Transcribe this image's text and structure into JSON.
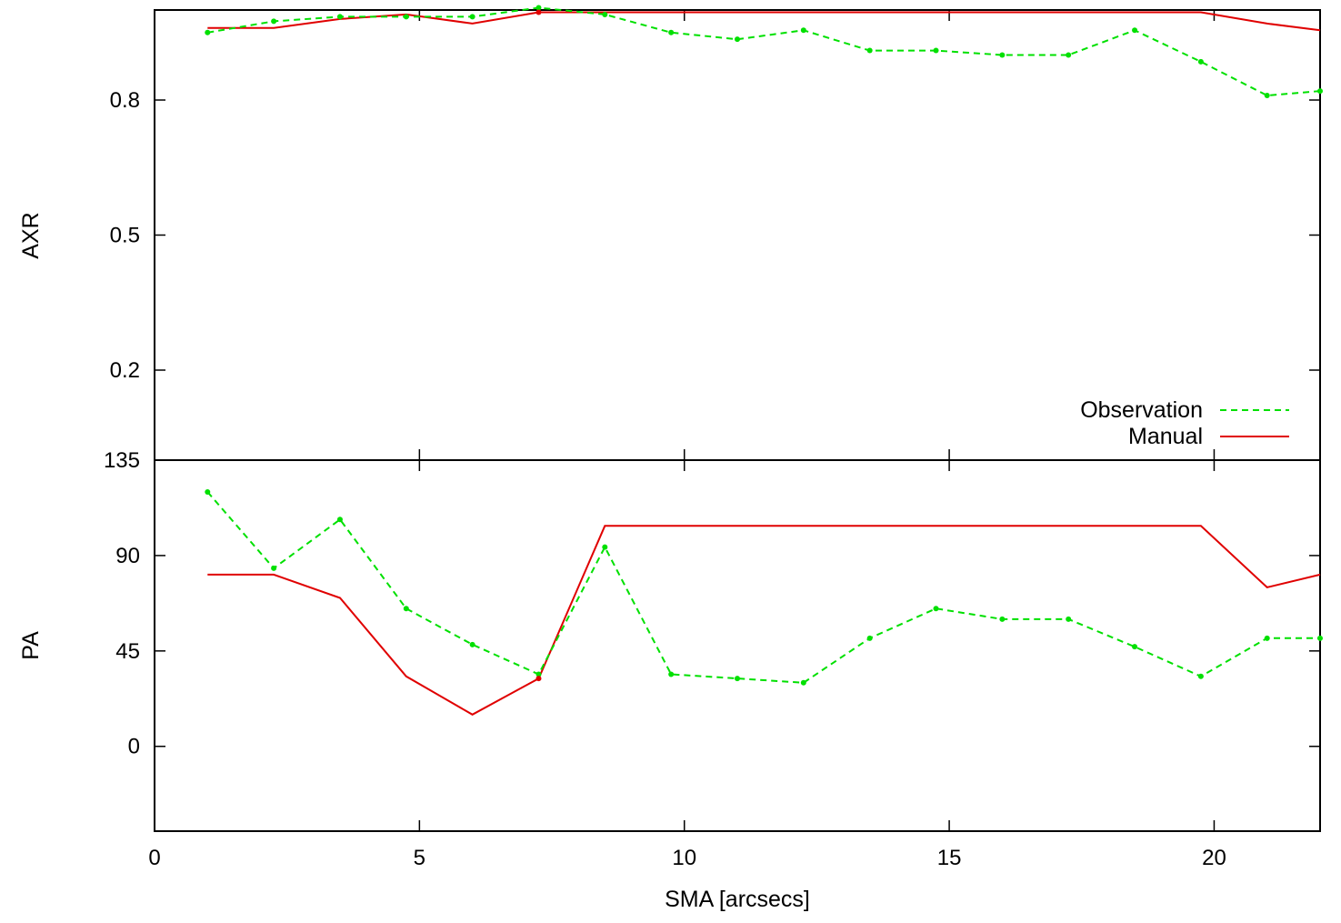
{
  "chart_data": [
    {
      "type": "line",
      "panel": "top",
      "ylabel": "AXR",
      "xlabel": "",
      "xlim": [
        0,
        22
      ],
      "ylim": [
        0.0,
        1.0
      ],
      "yticks": [
        "0.2",
        "0.5",
        "0.8"
      ],
      "grid": false,
      "legend_position": "bottom-right",
      "series": [
        {
          "name": "Observation",
          "color": "#00e000",
          "style": "dashed",
          "markers": true,
          "x": [
            1.0,
            2.25,
            3.5,
            4.75,
            6.0,
            7.25,
            8.5,
            9.75,
            11.0,
            12.25,
            13.5,
            14.75,
            16.0,
            17.25,
            18.5,
            19.75,
            21.0,
            22.0
          ],
          "y": [
            0.95,
            0.975,
            0.985,
            0.985,
            0.985,
            1.005,
            0.99,
            0.95,
            0.935,
            0.955,
            0.91,
            0.91,
            0.9,
            0.9,
            0.955,
            0.885,
            0.81,
            0.82
          ]
        },
        {
          "name": "Manual",
          "color": "#e00000",
          "style": "solid",
          "markers": false,
          "x": [
            1.0,
            2.25,
            3.5,
            4.75,
            6.0,
            7.25,
            8.5,
            9.75,
            11.0,
            12.25,
            13.5,
            14.75,
            16.0,
            17.25,
            18.5,
            19.75,
            21.0,
            22.0
          ],
          "y": [
            0.96,
            0.96,
            0.98,
            0.99,
            0.97,
            0.995,
            0.995,
            0.995,
            0.995,
            0.995,
            0.995,
            0.995,
            0.995,
            0.995,
            0.995,
            0.995,
            0.97,
            0.955
          ]
        }
      ]
    },
    {
      "type": "line",
      "panel": "bottom",
      "ylabel": "PA",
      "xlabel": "SMA [arcsecs]",
      "xlim": [
        0,
        22
      ],
      "ylim": [
        -40,
        135
      ],
      "yticks": [
        "0",
        "45",
        "90",
        "135"
      ],
      "xticks": [
        "0",
        "5",
        "10",
        "15",
        "20"
      ],
      "grid": false,
      "series": [
        {
          "name": "Observation",
          "color": "#00e000",
          "style": "dashed",
          "markers": true,
          "x": [
            1.0,
            2.25,
            3.5,
            4.75,
            6.0,
            7.25,
            8.5,
            9.75,
            11.0,
            12.25,
            13.5,
            14.75,
            16.0,
            17.25,
            18.5,
            19.75,
            21.0,
            22.0
          ],
          "y": [
            120,
            84,
            107,
            65,
            48,
            34,
            94,
            34,
            32,
            30,
            51,
            65,
            60,
            60,
            47,
            33,
            51,
            51
          ]
        },
        {
          "name": "Manual",
          "color": "#e00000",
          "style": "solid",
          "markers": false,
          "x": [
            1.0,
            2.25,
            3.5,
            4.75,
            6.0,
            7.25,
            8.5,
            9.75,
            11.0,
            12.25,
            13.5,
            14.75,
            16.0,
            17.25,
            18.5,
            19.75,
            21.0,
            22.0
          ],
          "y": [
            81,
            81,
            70,
            33,
            15,
            32,
            104,
            104,
            104,
            104,
            104,
            104,
            104,
            104,
            104,
            104,
            75,
            81
          ]
        }
      ]
    }
  ]
}
